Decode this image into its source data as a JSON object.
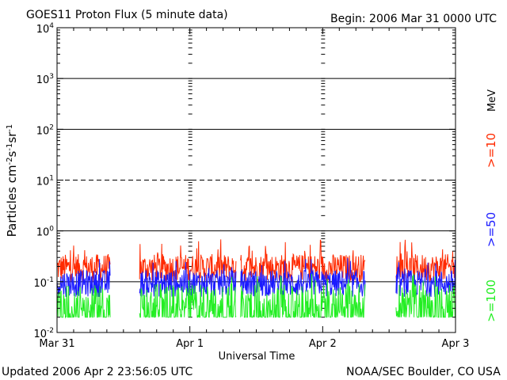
{
  "header": {
    "title": "GOES11 Proton Flux (5 minute data)",
    "begin": "Begin: 2006 Mar 31 0000 UTC"
  },
  "footer": {
    "updated": "Updated 2006 Apr  2 23:56:05 UTC",
    "credit": "NOAA/SEC Boulder, CO USA"
  },
  "chart_data": {
    "type": "line",
    "title": "GOES11 Proton Flux (5 minute data)",
    "xlabel": "Universal Time",
    "ylabel": "Particles cm-2s-1sr-1",
    "yscale": "log",
    "ylim": [
      0.01,
      10000
    ],
    "x_ticks": [
      "Mar 31",
      "Apr 1",
      "Apr 2",
      "Apr 3"
    ],
    "xlim_days": [
      0,
      3
    ],
    "y_ticks": [
      {
        "base": "10",
        "exp": "-2"
      },
      {
        "base": "10",
        "exp": "-1"
      },
      {
        "base": "10",
        "exp": "0"
      },
      {
        "base": "10",
        "exp": "1"
      },
      {
        "base": "10",
        "exp": "2"
      },
      {
        "base": "10",
        "exp": "3"
      },
      {
        "base": "10",
        "exp": "4"
      }
    ],
    "unit_label": "MeV",
    "reference_lines": [
      {
        "value": 1000,
        "style": "solid"
      },
      {
        "value": 100,
        "style": "solid"
      },
      {
        "value": 10,
        "style": "dashed"
      },
      {
        "value": 1,
        "style": "solid"
      },
      {
        "value": 0.1,
        "style": "solid"
      }
    ],
    "gaps_days": [
      [
        0.4,
        0.62
      ],
      [
        1.35,
        1.38
      ],
      [
        2.32,
        2.55
      ]
    ],
    "series": [
      {
        "name": ">=10",
        "color": "#ff2a00",
        "typical_low": 0.1,
        "typical_high": 0.35,
        "peak": 0.7
      },
      {
        "name": ">=50",
        "color": "#1a1aff",
        "typical_low": 0.05,
        "typical_high": 0.17,
        "peak": 0.3
      },
      {
        "name": ">=100",
        "color": "#22ee22",
        "typical_low": 0.02,
        "typical_high": 0.09,
        "peak": 0.15
      }
    ]
  }
}
